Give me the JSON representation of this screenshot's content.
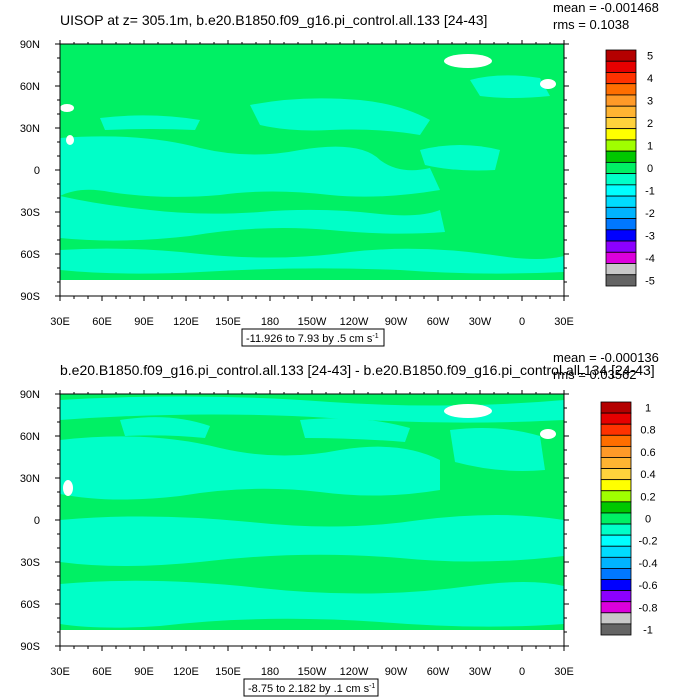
{
  "chart_data": [
    {
      "type": "heatmap",
      "title": "UISOP at z= 305.1m, b.e20.B1850.f09_g16.pi_control.all.133 [24-43]",
      "stats": {
        "mean": "mean = -0.001468",
        "rms": "rms = 0.1038"
      },
      "range_label": "-11.926 to 7.93 by .5 cm s",
      "range_label_sup": "-1",
      "x_ticks": [
        "30E",
        "60E",
        "90E",
        "120E",
        "150E",
        "180",
        "150W",
        "120W",
        "90W",
        "60W",
        "30W",
        "0",
        "30E"
      ],
      "y_ticks": [
        "90N",
        "60N",
        "30N",
        "0",
        "30S",
        "60S",
        "90S"
      ],
      "xlim": [
        30,
        390
      ],
      "ylim": [
        -90,
        90
      ],
      "colorbar": {
        "labels": [
          "5",
          "4",
          "3",
          "2",
          "1",
          "0",
          "-1",
          "-2",
          "-3",
          "-4",
          "-5"
        ],
        "colors": [
          "#b40000",
          "#e60000",
          "#ff3200",
          "#ff6e00",
          "#ff9a28",
          "#ffb432",
          "#ffd23c",
          "#ffff00",
          "#a0ff00",
          "#00c800",
          "#00f064",
          "#00ffc8",
          "#00ffff",
          "#00dcff",
          "#00b4ff",
          "#0078ff",
          "#0000ff",
          "#8c00ff",
          "#dc00dc",
          "#c8c8c8",
          "#646464"
        ]
      },
      "dominant_values": [
        "0 to 0.5",
        "-0.5 to 0"
      ],
      "land_color": "#ffffff"
    },
    {
      "type": "heatmap",
      "title": "b.e20.B1850.f09_g16.pi_control.all.133 [24-43] - b.e20.B1850.f09_g16.pi_control.all.134 [24-43]",
      "stats": {
        "mean": "mean = -0.000136",
        "rms": "rms = 0.03562"
      },
      "range_label": "-8.75 to 2.182 by .1 cm s",
      "range_label_sup": "-1",
      "x_ticks": [
        "30E",
        "60E",
        "90E",
        "120E",
        "150E",
        "180",
        "150W",
        "120W",
        "90W",
        "60W",
        "30W",
        "0",
        "30E"
      ],
      "y_ticks": [
        "90N",
        "60N",
        "30N",
        "0",
        "30S",
        "60S",
        "90S"
      ],
      "xlim": [
        30,
        390
      ],
      "ylim": [
        -90,
        90
      ],
      "colorbar": {
        "labels": [
          "1",
          "0.8",
          "0.6",
          "0.4",
          "0.2",
          "0",
          "-0.2",
          "-0.4",
          "-0.6",
          "-0.8",
          "-1"
        ],
        "colors": [
          "#b40000",
          "#e60000",
          "#ff3200",
          "#ff6e00",
          "#ff9a28",
          "#ffb432",
          "#ffd23c",
          "#ffff00",
          "#a0ff00",
          "#00c800",
          "#00f064",
          "#00ffc8",
          "#00ffff",
          "#00dcff",
          "#00b4ff",
          "#0078ff",
          "#0000ff",
          "#8c00ff",
          "#dc00dc",
          "#c8c8c8",
          "#646464"
        ]
      },
      "dominant_values": [
        "0 to 0.1",
        "-0.1 to 0"
      ],
      "land_color": "#ffffff"
    }
  ]
}
